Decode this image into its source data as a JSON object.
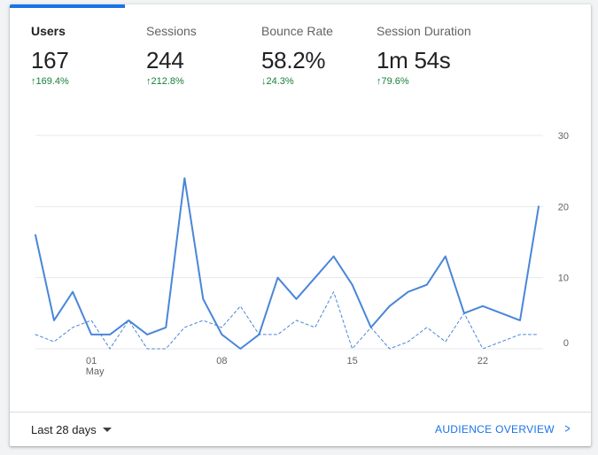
{
  "tabs": [
    {
      "label": "Users",
      "value": "167",
      "change": "↑169.4%",
      "active": true
    },
    {
      "label": "Sessions",
      "value": "244",
      "change": "↑212.8%",
      "active": false
    },
    {
      "label": "Bounce Rate",
      "value": "58.2%",
      "change": "↓24.3%",
      "active": false
    },
    {
      "label": "Session Duration",
      "value": "1m 54s",
      "change": "↑79.6%",
      "active": false
    }
  ],
  "footer": {
    "date_range": "Last 28 days",
    "overview_link": "AUDIENCE OVERVIEW"
  },
  "colors": {
    "accent": "#1a73e8",
    "line": "#4a86d8",
    "positive": "#188038"
  },
  "chart_data": {
    "type": "line",
    "x_tick_labels": [
      {
        "index": 3,
        "label": "01",
        "sublabel": "May"
      },
      {
        "index": 10,
        "label": "08"
      },
      {
        "index": 17,
        "label": "15"
      },
      {
        "index": 24,
        "label": "22"
      }
    ],
    "y_tick_labels": [
      "30",
      "20",
      "10",
      "0"
    ],
    "ylim": [
      0,
      30
    ],
    "grid": true,
    "series": [
      {
        "style": "solid",
        "values": [
          16,
          4,
          8,
          2,
          2,
          4,
          2,
          3,
          24,
          7,
          2,
          0,
          2,
          10,
          7,
          10,
          13,
          9,
          3,
          6,
          8,
          9,
          13,
          5,
          6,
          5,
          4,
          20
        ]
      },
      {
        "style": "dashed",
        "values": [
          2,
          1,
          3,
          4,
          0,
          4,
          0,
          0,
          3,
          4,
          3,
          6,
          2,
          2,
          4,
          3,
          8,
          0,
          3,
          0,
          1,
          3,
          1,
          5,
          0,
          1,
          2,
          2
        ]
      }
    ]
  }
}
